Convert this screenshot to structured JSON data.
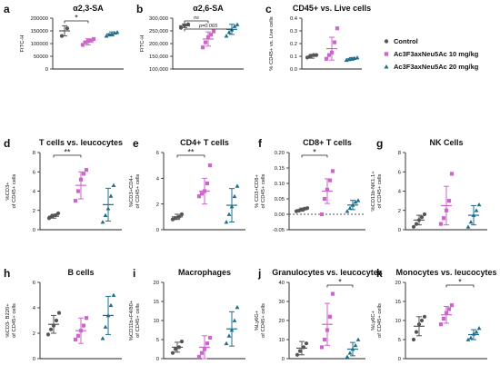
{
  "colors": {
    "control": "#555555",
    "dose10": "#cc66cc",
    "dose20": "#1f6f8b",
    "axis": "#222222",
    "text": "#111111"
  },
  "legend": {
    "items": [
      {
        "label": "Control",
        "marker": "circle",
        "color": "#555555"
      },
      {
        "label": "Ac3F3axNeu5Ac 10 mg/kg",
        "marker": "square",
        "color": "#cc66cc"
      },
      {
        "label": "Ac3F3axNeu5Ac 20 mg/kg",
        "marker": "triangle",
        "color": "#1f6f8b"
      }
    ]
  },
  "chart_data": [
    {
      "type": "scatter",
      "letter": "a",
      "title": "α2,3-SA",
      "ylabel": "FITC-H",
      "ylim": [
        0,
        200000
      ],
      "yticks": [
        0,
        50000,
        100000,
        150000,
        200000
      ],
      "yticklabels": [
        "0",
        "50000",
        "100000",
        "150000",
        "200000"
      ],
      "groups": [
        {
          "values": [
            130000,
            160000
          ],
          "mean": 150000,
          "sd": 20000
        },
        {
          "values": [
            95000,
            105000,
            110000,
            112000,
            118000
          ],
          "mean": 107000,
          "sd": 12000
        },
        {
          "values": [
            130000,
            135000,
            138000,
            142000,
            145000
          ],
          "mean": 138000,
          "sd": 8000
        }
      ],
      "comparisons": [
        {
          "from": 0,
          "to": 1,
          "label": "*"
        }
      ]
    },
    {
      "type": "scatter",
      "letter": "b",
      "title": "α2,6-SA",
      "ylabel": "FITC-H",
      "ylim": [
        100000,
        300000
      ],
      "yticks": [
        100000,
        150000,
        200000,
        250000,
        300000
      ],
      "yticklabels": [
        "100,000",
        "150,000",
        "200,000",
        "250,000",
        "300,000"
      ],
      "groups": [
        {
          "values": [
            262000,
            272000,
            276000
          ],
          "mean": 270000,
          "sd": 7000
        },
        {
          "values": [
            185000,
            205000,
            225000,
            235000,
            248000
          ],
          "mean": 218000,
          "sd": 28000
        },
        {
          "values": [
            230000,
            245000,
            255000,
            268000,
            275000
          ],
          "mean": 256000,
          "sd": 20000
        }
      ],
      "comparisons": [
        {
          "from": 0,
          "to": 1,
          "label": "ns"
        },
        {
          "from": 0,
          "to": 2,
          "label": "p=0.065"
        }
      ]
    },
    {
      "type": "scatter",
      "letter": "c",
      "title": "CD45+ vs. Live cells",
      "ylabel": "% CD45+ vs. Live cells",
      "ylim": [
        0,
        0.4
      ],
      "yticks": [
        0,
        0.1,
        0.2,
        0.3,
        0.4
      ],
      "yticklabels": [
        "0.0",
        "0.1",
        "0.2",
        "0.3",
        "0.4"
      ],
      "groups": [
        {
          "values": [
            0.09,
            0.1,
            0.11,
            0.11
          ],
          "mean": 0.1,
          "sd": 0.015
        },
        {
          "values": [
            0.08,
            0.11,
            0.13,
            0.21,
            0.32
          ],
          "mean": 0.16,
          "sd": 0.09
        },
        {
          "values": [
            0.07,
            0.075,
            0.08,
            0.085,
            0.09
          ],
          "mean": 0.08,
          "sd": 0.01
        }
      ],
      "comparisons": []
    },
    {
      "type": "scatter",
      "letter": "d",
      "title": "T cells vs. leucocytes",
      "ylabel": "%CD3+ of CD45+ cells",
      "ylim": [
        0,
        8
      ],
      "yticks": [
        0,
        2,
        4,
        6,
        8
      ],
      "yticklabels": [
        "0",
        "2",
        "4",
        "6",
        "8"
      ],
      "groups": [
        {
          "values": [
            1.2,
            1.4,
            1.5,
            1.7
          ],
          "mean": 1.4,
          "sd": 0.2
        },
        {
          "values": [
            3.0,
            4.0,
            5.2,
            5.8,
            6.2
          ],
          "mean": 4.6,
          "sd": 1.4
        },
        {
          "values": [
            0.8,
            1.5,
            2.2,
            3.5,
            4.6
          ],
          "mean": 2.6,
          "sd": 1.7
        }
      ],
      "comparisons": [
        {
          "from": 0,
          "to": 1,
          "label": "**"
        }
      ]
    },
    {
      "type": "scatter",
      "letter": "e",
      "title": "CD4+ T cells",
      "ylabel": "%CD3+CD4+ of CD45+ cells",
      "ylim": [
        0,
        6
      ],
      "yticks": [
        0,
        2,
        4,
        6
      ],
      "yticklabels": [
        "0",
        "2",
        "4",
        "6"
      ],
      "groups": [
        {
          "values": [
            0.8,
            0.9,
            1.0,
            1.2
          ],
          "mean": 1.0,
          "sd": 0.2
        },
        {
          "values": [
            2.6,
            2.8,
            3.0,
            3.6,
            5.0
          ],
          "mean": 3.0,
          "sd": 1.0
        },
        {
          "values": [
            0.6,
            1.2,
            1.8,
            2.6,
            3.4
          ],
          "mean": 1.9,
          "sd": 1.3
        }
      ],
      "comparisons": [
        {
          "from": 0,
          "to": 1,
          "label": "**"
        }
      ]
    },
    {
      "type": "scatter",
      "letter": "f",
      "title": "CD8+ T cells",
      "ylabel": "% CD3+CD8+ of CD45+ cells",
      "ylim": [
        -0.05,
        0.2
      ],
      "yticks": [
        -0.05,
        0,
        0.05,
        0.1,
        0.15,
        0.2
      ],
      "yticklabels": [
        "-0.05",
        "0.00",
        "0.05",
        "0.10",
        "0.15",
        "0.20"
      ],
      "zero_line": true,
      "groups": [
        {
          "values": [
            0.01,
            0.012,
            0.015,
            0.018,
            0.02
          ],
          "mean": 0.015,
          "sd": 0.005
        },
        {
          "values": [
            0.0,
            0.05,
            0.08,
            0.11,
            0.14
          ],
          "mean": 0.075,
          "sd": 0.04
        },
        {
          "values": [
            0.01,
            0.02,
            0.03,
            0.04,
            0.045
          ],
          "mean": 0.03,
          "sd": 0.015
        }
      ],
      "comparisons": [
        {
          "from": 0,
          "to": 1,
          "label": "*"
        }
      ]
    },
    {
      "type": "scatter",
      "letter": "g",
      "title": "NK Cells",
      "ylabel": "%CD11b-NK1.1+ of CD45+ cells",
      "ylim": [
        0,
        8
      ],
      "yticks": [
        0,
        2,
        4,
        6,
        8
      ],
      "yticklabels": [
        "0",
        "2",
        "4",
        "6",
        "8"
      ],
      "groups": [
        {
          "values": [
            0.3,
            0.6,
            1.0,
            1.3,
            1.6
          ],
          "mean": 1.0,
          "sd": 0.5
        },
        {
          "values": [
            0.6,
            1.2,
            2.0,
            3.0,
            5.8
          ],
          "mean": 2.5,
          "sd": 2.0
        },
        {
          "values": [
            0.3,
            0.8,
            1.5,
            2.0,
            2.6
          ],
          "mean": 1.5,
          "sd": 1.0
        }
      ],
      "comparisons": []
    },
    {
      "type": "scatter",
      "letter": "h",
      "title": "B cells",
      "ylabel": "%CD3- B220+ of CD45+ cells",
      "ylim": [
        0,
        6
      ],
      "yticks": [
        0,
        2,
        4,
        6
      ],
      "yticklabels": [
        "0",
        "2",
        "4",
        "6"
      ],
      "groups": [
        {
          "values": [
            1.9,
            2.3,
            2.6,
            3.0,
            3.6
          ],
          "mean": 2.7,
          "sd": 0.7
        },
        {
          "values": [
            1.5,
            1.8,
            2.2,
            2.6,
            3.2
          ],
          "mean": 2.2,
          "sd": 1.0
        },
        {
          "values": [
            1.6,
            2.5,
            3.4,
            4.2,
            5.0
          ],
          "mean": 3.4,
          "sd": 1.5
        }
      ],
      "comparisons": []
    },
    {
      "type": "scatter",
      "letter": "i",
      "title": "Macrophages",
      "ylabel": "%CD11b+F4/80+ of CD45+ cells",
      "ylim": [
        0,
        20
      ],
      "yticks": [
        0,
        5,
        10,
        15,
        20
      ],
      "yticklabels": [
        "0",
        "5",
        "10",
        "15",
        "20"
      ],
      "groups": [
        {
          "values": [
            1.5,
            2.5,
            3.0,
            4.5
          ],
          "mean": 3.0,
          "sd": 1.3
        },
        {
          "values": [
            0.5,
            1.5,
            2.5,
            4.0,
            5.5
          ],
          "mean": 3.0,
          "sd": 3.0
        },
        {
          "values": [
            4.0,
            6.0,
            7.5,
            10.0,
            13.5
          ],
          "mean": 7.8,
          "sd": 4.5
        }
      ],
      "comparisons": []
    },
    {
      "type": "scatter",
      "letter": "j",
      "title": "Granulocytes vs. leucocytes",
      "ylabel": "%Ly6G+ of CD45+ cells",
      "ylim": [
        0,
        40
      ],
      "yticks": [
        0,
        10,
        20,
        30,
        40
      ],
      "yticklabels": [
        "0",
        "10",
        "20",
        "30",
        "40"
      ],
      "groups": [
        {
          "values": [
            2,
            4,
            6,
            8
          ],
          "mean": 5.5,
          "sd": 3.5
        },
        {
          "values": [
            6,
            10,
            15,
            22,
            34
          ],
          "mean": 18,
          "sd": 11
        },
        {
          "values": [
            1,
            3,
            5,
            7,
            10
          ],
          "mean": 5,
          "sd": 3.5
        }
      ],
      "comparisons": [
        {
          "from": 1,
          "to": 2,
          "label": "*"
        }
      ]
    },
    {
      "type": "scatter",
      "letter": "k",
      "title": "Monocytes vs. leucocytes",
      "ylabel": "%Ly6C+ of CD45+ cells",
      "ylim": [
        0,
        20
      ],
      "yticks": [
        0,
        5,
        10,
        15,
        20
      ],
      "yticklabels": [
        "0",
        "5",
        "10",
        "15",
        "20"
      ],
      "groups": [
        {
          "values": [
            5,
            7,
            9,
            10,
            11
          ],
          "mean": 8.5,
          "sd": 2.5
        },
        {
          "values": [
            9,
            10.5,
            12,
            13,
            14
          ],
          "mean": 11.5,
          "sd": 2.2
        },
        {
          "values": [
            5,
            5.5,
            6.5,
            7,
            8
          ],
          "mean": 6.3,
          "sd": 1.3
        }
      ],
      "comparisons": [
        {
          "from": 1,
          "to": 2,
          "label": "*"
        }
      ]
    }
  ]
}
